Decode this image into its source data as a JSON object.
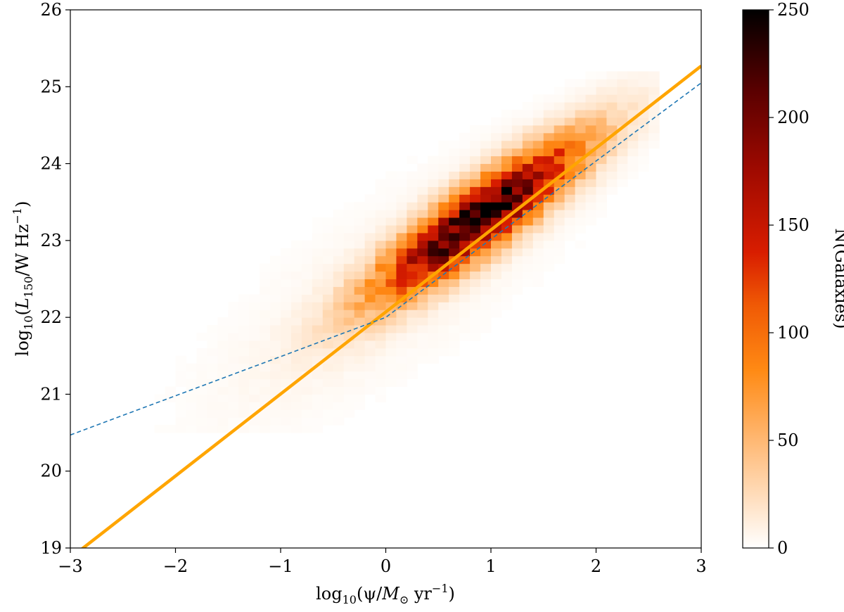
{
  "chart_data": {
    "type": "heatmap",
    "title": "",
    "xlabel_parts": {
      "pre": "log",
      "sub1": "10",
      "mid": "(ψ/",
      "m": "M",
      "sun": "⊙",
      "unit": " yr",
      "sup": "−1",
      "close": ")"
    },
    "ylabel_parts": {
      "pre": "log",
      "sub1": "10",
      "mid": "(",
      "L": "L",
      "sub2": "150",
      "unit": "/W Hz",
      "sup": "−1",
      "close": ")"
    },
    "xlim": [
      -3,
      3
    ],
    "ylim": [
      19,
      26
    ],
    "xticks": [
      -3,
      -2,
      -1,
      0,
      1,
      2,
      3
    ],
    "xtick_labels": [
      "−3",
      "−2",
      "−1",
      "0",
      "1",
      "2",
      "3"
    ],
    "yticks": [
      19,
      20,
      21,
      22,
      23,
      24,
      25,
      26
    ],
    "ytick_labels": [
      "19",
      "20",
      "21",
      "22",
      "23",
      "24",
      "25",
      "26"
    ],
    "grid": false,
    "histogram": {
      "description_of_density": "2D histogram of galaxy counts; peak near x=0.9, y=23.3",
      "peak_count": 250,
      "peak_center": [
        0.9,
        23.3
      ],
      "correlation_slope": 1.05,
      "spread_along": 0.9,
      "spread_across": 0.22,
      "x_range": [
        -3,
        2.6
      ],
      "y_range": [
        20.5,
        25.2
      ]
    },
    "series": [
      {
        "style": "solid",
        "color": "#FFA500",
        "x": [
          -3,
          3
        ],
        "y": [
          18.87,
          25.27
        ]
      },
      {
        "style": "dashed",
        "color": "#1F77B4",
        "x": [
          -3,
          0,
          3
        ],
        "y": [
          20.47,
          22.0,
          25.05
        ]
      }
    ],
    "colorbar": {
      "label": "N(Galaxies)",
      "range": [
        0,
        250
      ],
      "ticks": [
        0,
        50,
        100,
        150,
        200,
        250
      ],
      "tick_labels": [
        "0",
        "50",
        "100",
        "150",
        "200",
        "250"
      ],
      "colormap": "gist_heat_r"
    }
  }
}
